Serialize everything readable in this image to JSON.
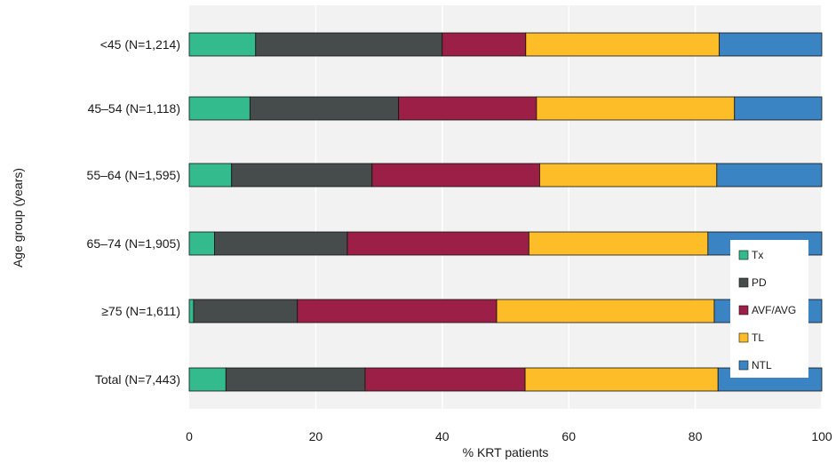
{
  "chart_data": {
    "type": "bar",
    "orientation": "horizontal",
    "stacked": true,
    "title": "",
    "xlabel": "% KRT patients",
    "ylabel": "Age group (years)",
    "xlim": [
      0,
      100
    ],
    "xticks": [
      "0",
      "20",
      "40",
      "60",
      "80",
      "100"
    ],
    "grid": "vertical",
    "legend_position": "bottom-right",
    "categories": [
      "<45 (N=1,214)",
      "45–54 (N=1,118)",
      "55–64 (N=1,595)",
      "65–74 (N=1,905)",
      "≥75 (N=1,611)",
      "Total (N=7,443)"
    ],
    "series": [
      {
        "name": "Tx",
        "color": "#33bb8e",
        "values": [
          10.5,
          9.6,
          6.7,
          4.0,
          0.7,
          5.8
        ]
      },
      {
        "name": "PD",
        "color": "#464b4b",
        "values": [
          29.5,
          23.5,
          22.2,
          21.0,
          16.4,
          22.0
        ]
      },
      {
        "name": "AVF/AVG",
        "color": "#9c1f47",
        "values": [
          13.2,
          21.8,
          26.5,
          28.7,
          31.5,
          25.3
        ]
      },
      {
        "name": "TL",
        "color": "#fdbd29",
        "values": [
          30.6,
          31.3,
          28.0,
          28.3,
          34.4,
          30.5
        ]
      },
      {
        "name": "NTL",
        "color": "#3b84c4",
        "values": [
          16.2,
          13.8,
          16.6,
          18.0,
          17.0,
          16.4
        ]
      }
    ]
  }
}
